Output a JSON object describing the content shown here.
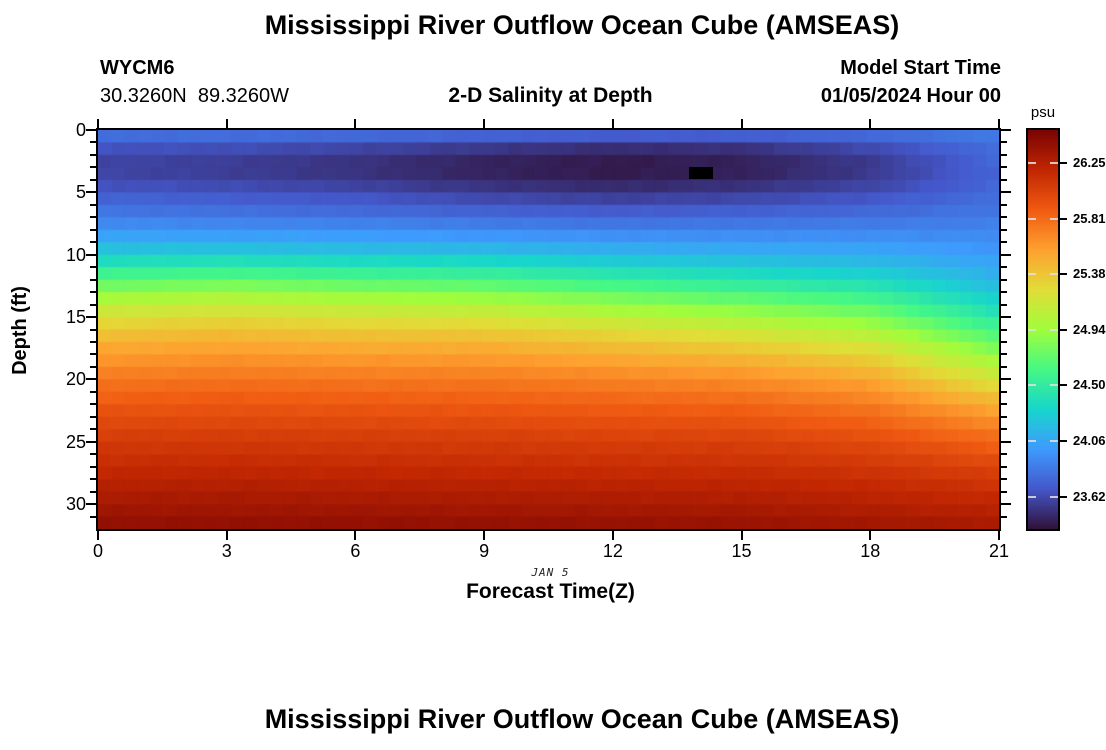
{
  "title": "Mississippi River Outflow Ocean Cube (AMSEAS)",
  "panel_header": {
    "station_id": "WYCM6",
    "location": "30.3260N  89.3260W",
    "plot_subtitle": "2-D Salinity at Depth",
    "model_start_label": "Model Start Time",
    "model_start_value": "01/05/2024 Hour 00"
  },
  "chart_data": {
    "type": "heatmap",
    "title": "2-D Salinity at Depth",
    "xlabel": "Forecast Time(Z)",
    "ylabel": "Depth (ft)",
    "date_annotation": "JAN 5",
    "grid": false,
    "colormap": "turbo",
    "x_ticks": [
      0,
      3,
      6,
      9,
      12,
      15,
      18,
      21
    ],
    "x_range": [
      0,
      21
    ],
    "y_ticks": [
      0,
      5,
      10,
      15,
      20,
      25,
      30
    ],
    "y_minor_step": 1,
    "y_range": [
      0,
      32
    ],
    "x_cell_count": 68,
    "colorbar": {
      "label": "psu",
      "tick_labels": [
        "26.25",
        "25.81",
        "25.38",
        "24.94",
        "24.50",
        "24.06",
        "23.62"
      ],
      "vmin": 23.37,
      "vmax": 26.51
    },
    "depths_ft": [
      0,
      1,
      2,
      3,
      4,
      5,
      6,
      7,
      8,
      9,
      10,
      11,
      12,
      13,
      14,
      15,
      16,
      17,
      18,
      19,
      20,
      21,
      22,
      23,
      24,
      25,
      26,
      27,
      28,
      29,
      30,
      31
    ],
    "profile_times_z": [
      0,
      3,
      6,
      9,
      12,
      15,
      18,
      21
    ],
    "salinity_profiles_psu": [
      [
        23.78,
        23.66,
        23.6,
        23.6,
        23.66,
        23.74,
        23.82,
        23.92,
        24.04,
        24.19,
        24.37,
        24.57,
        24.77,
        24.97,
        25.14,
        25.29,
        25.42,
        25.53,
        25.62,
        25.71,
        25.79,
        25.86,
        25.93,
        25.99,
        26.05,
        26.1,
        26.15,
        26.2,
        26.25,
        26.3,
        26.35,
        26.4
      ],
      [
        23.78,
        23.64,
        23.57,
        23.57,
        23.63,
        23.71,
        23.8,
        23.9,
        24.03,
        24.19,
        24.39,
        24.6,
        24.82,
        25.02,
        25.19,
        25.33,
        25.45,
        25.56,
        25.65,
        25.73,
        25.81,
        25.88,
        25.94,
        26.0,
        26.06,
        26.11,
        26.16,
        26.21,
        26.26,
        26.31,
        26.35,
        26.4
      ],
      [
        23.76,
        23.6,
        23.52,
        23.52,
        23.59,
        23.68,
        23.77,
        23.88,
        24.01,
        24.16,
        24.35,
        24.55,
        24.76,
        24.96,
        25.13,
        25.28,
        25.41,
        25.52,
        25.62,
        25.71,
        25.79,
        25.86,
        25.93,
        25.99,
        26.05,
        26.1,
        26.15,
        26.2,
        26.25,
        26.3,
        26.35,
        26.4
      ],
      [
        23.73,
        23.54,
        23.45,
        23.45,
        23.52,
        23.62,
        23.73,
        23.85,
        23.98,
        24.14,
        24.33,
        24.52,
        24.72,
        24.92,
        25.1,
        25.26,
        25.4,
        25.51,
        25.61,
        25.7,
        25.78,
        25.85,
        25.92,
        25.98,
        26.04,
        26.09,
        26.14,
        26.19,
        26.24,
        26.29,
        26.34,
        26.39
      ],
      [
        23.7,
        23.49,
        23.41,
        23.41,
        23.48,
        23.58,
        23.7,
        23.82,
        23.95,
        24.09,
        24.25,
        24.43,
        24.62,
        24.81,
        24.99,
        25.16,
        25.31,
        25.44,
        25.55,
        25.65,
        25.74,
        25.82,
        25.89,
        25.96,
        26.02,
        26.08,
        26.13,
        26.18,
        26.23,
        26.28,
        26.33,
        26.38
      ],
      [
        23.71,
        23.51,
        23.44,
        23.44,
        23.51,
        23.61,
        23.72,
        23.83,
        23.94,
        24.06,
        24.2,
        24.36,
        24.53,
        24.71,
        24.89,
        25.06,
        25.22,
        25.36,
        25.49,
        25.6,
        25.7,
        25.79,
        25.87,
        25.94,
        26.01,
        26.07,
        26.12,
        26.17,
        26.22,
        26.27,
        26.32,
        26.37
      ],
      [
        23.76,
        23.62,
        23.55,
        23.55,
        23.6,
        23.68,
        23.76,
        23.85,
        23.94,
        24.04,
        24.15,
        24.28,
        24.43,
        24.59,
        24.75,
        24.91,
        25.07,
        25.22,
        25.36,
        25.48,
        25.59,
        25.69,
        25.78,
        25.86,
        25.94,
        26.01,
        26.07,
        26.13,
        26.18,
        26.23,
        26.28,
        26.33
      ],
      [
        23.84,
        23.79,
        23.76,
        23.75,
        23.76,
        23.79,
        23.83,
        23.87,
        23.92,
        23.97,
        24.03,
        24.1,
        24.18,
        24.28,
        24.39,
        24.52,
        24.66,
        24.81,
        24.96,
        25.11,
        25.26,
        25.41,
        25.55,
        25.67,
        25.78,
        25.88,
        25.97,
        26.05,
        26.12,
        26.18,
        26.24,
        26.3
      ]
    ],
    "low_salinity_marker": {
      "t0": 13.78,
      "t1": 14.33,
      "z0": 2.95,
      "z1": 3.9,
      "color": "#000000",
      "note": "below-scale minimum cell"
    }
  },
  "footer": {
    "next_panel_title": "Mississippi River Outflow Ocean Cube (AMSEAS)"
  }
}
